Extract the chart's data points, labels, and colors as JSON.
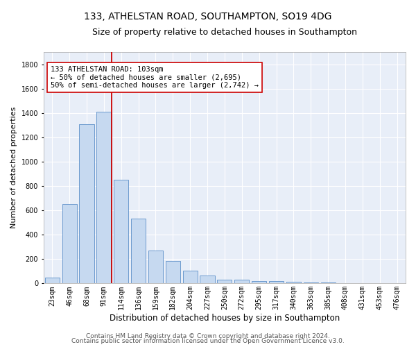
{
  "title1": "133, ATHELSTAN ROAD, SOUTHAMPTON, SO19 4DG",
  "title2": "Size of property relative to detached houses in Southampton",
  "xlabel": "Distribution of detached houses by size in Southampton",
  "ylabel": "Number of detached properties",
  "categories": [
    "23sqm",
    "46sqm",
    "68sqm",
    "91sqm",
    "114sqm",
    "136sqm",
    "159sqm",
    "182sqm",
    "204sqm",
    "227sqm",
    "250sqm",
    "272sqm",
    "295sqm",
    "317sqm",
    "340sqm",
    "363sqm",
    "385sqm",
    "408sqm",
    "431sqm",
    "453sqm",
    "476sqm"
  ],
  "values": [
    50,
    650,
    1305,
    1410,
    850,
    530,
    270,
    185,
    105,
    65,
    32,
    30,
    20,
    18,
    14,
    10,
    7,
    4,
    3,
    2,
    2
  ],
  "bar_color": "#c6d9f0",
  "bar_edge_color": "#5b8fc9",
  "vline_x_index": 3,
  "vline_color": "#cc0000",
  "ylim": [
    0,
    1900
  ],
  "yticks": [
    0,
    200,
    400,
    600,
    800,
    1000,
    1200,
    1400,
    1600,
    1800
  ],
  "annotation_line1": "133 ATHELSTAN ROAD: 103sqm",
  "annotation_line2": "← 50% of detached houses are smaller (2,695)",
  "annotation_line3": "50% of semi-detached houses are larger (2,742) →",
  "annotation_box_color": "#ffffff",
  "annotation_box_edge": "#cc0000",
  "footer1": "Contains HM Land Registry data © Crown copyright and database right 2024.",
  "footer2": "Contains public sector information licensed under the Open Government Licence v3.0.",
  "fig_bg_color": "#ffffff",
  "ax_bg_color": "#e8eef8",
  "grid_color": "#ffffff",
  "title1_fontsize": 10,
  "title2_fontsize": 9,
  "xlabel_fontsize": 8.5,
  "ylabel_fontsize": 8,
  "tick_fontsize": 7,
  "annotation_fontsize": 7.5,
  "footer_fontsize": 6.5
}
